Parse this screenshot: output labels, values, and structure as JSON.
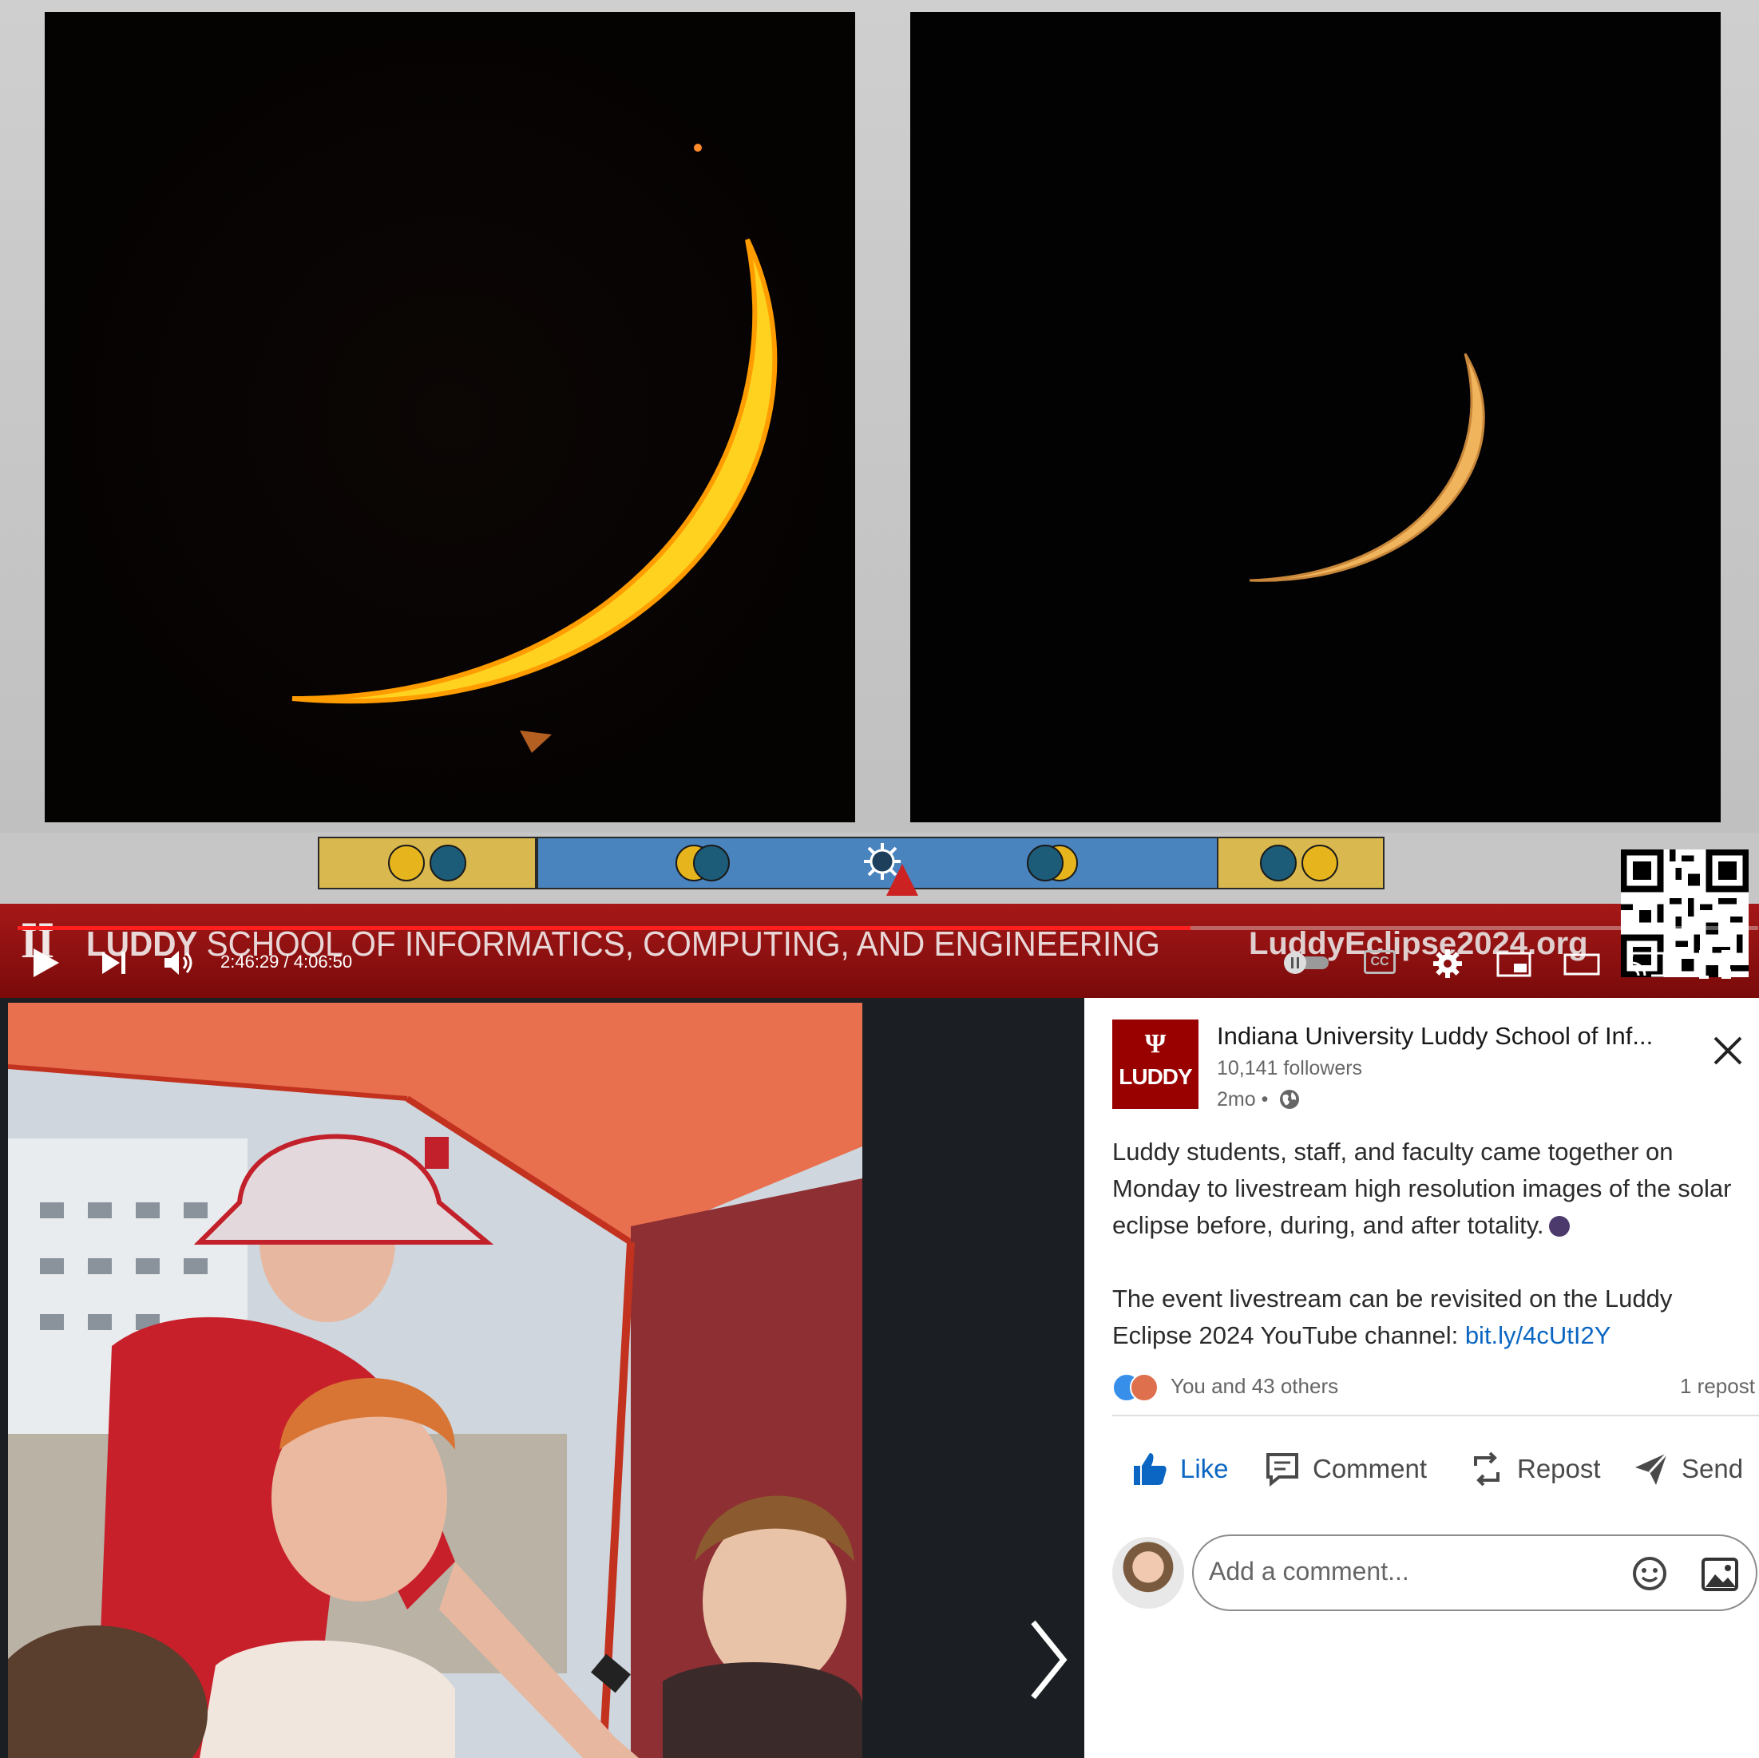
{
  "video": {
    "banner_logo": "ĪĪ",
    "banner_title_bold": "LUDDY",
    "banner_title_rest": " SCHOOL OF INFORMATICS, COMPUTING, AND ENGINEERING",
    "banner_url": "LuddyEclipse2024.org",
    "time_display": "2:46:29 / 4:06:50",
    "progress_fraction": 0.674,
    "timeline_phases": [
      "partial",
      "total",
      "partial"
    ],
    "colors": {
      "sun": "#e6b51e",
      "moon": "#1d5c78",
      "partial_bg": "#d9b94f",
      "total_bg": "#4a84bf",
      "progress": "#ff1f1f",
      "banner": "#a51818"
    },
    "controls": [
      "play-icon",
      "next-icon",
      "volume-icon",
      "autoplay-toggle-icon",
      "cc-icon",
      "settings-icon",
      "miniplayer-icon",
      "theater-icon",
      "cast-icon",
      "fullscreen-icon"
    ],
    "cc_label": "CC"
  },
  "post": {
    "org_name": "Indiana University Luddy School of Inf...",
    "logo_trident": "Ψ",
    "logo_word": "LUDDY",
    "followers": "10,141 followers",
    "age": "2mo •",
    "body_line1": "Luddy students, staff, and faculty came together on Monday to livestream high resolution images of the solar eclipse before, during, and after totality.",
    "body_line2_prefix": "The event livestream can be revisited on the Luddy Eclipse 2024 YouTube channel: ",
    "body_link": "bit.ly/4cUtI2Y",
    "reactions_text": "You and 43 others",
    "reposts_text": "1 repost",
    "actions": {
      "like": "Like",
      "comment": "Comment",
      "repost": "Repost",
      "send": "Send"
    },
    "comment_placeholder": "Add a comment...",
    "link_color": "#0a66c2"
  }
}
